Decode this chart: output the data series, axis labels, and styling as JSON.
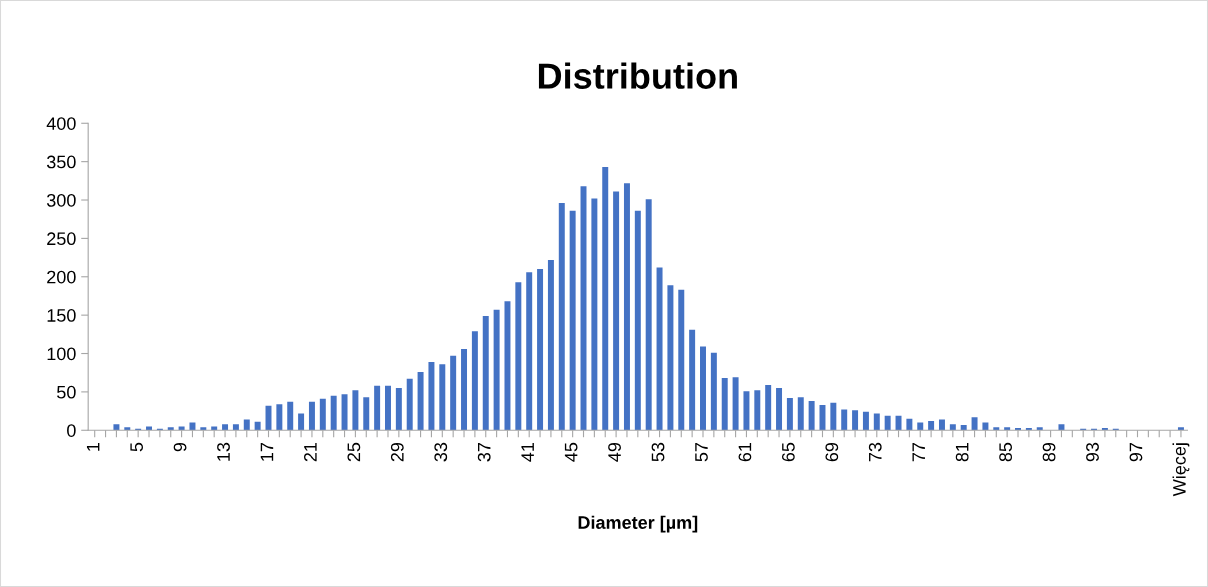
{
  "chart_data": {
    "type": "bar",
    "title": "Distribution",
    "xlabel": "Diameter [µm]",
    "categories": [
      "1",
      null,
      null,
      null,
      "5",
      null,
      null,
      null,
      "9",
      null,
      null,
      null,
      "13",
      null,
      null,
      null,
      "17",
      null,
      null,
      null,
      "21",
      null,
      null,
      null,
      "25",
      null,
      null,
      null,
      "29",
      null,
      null,
      null,
      "33",
      null,
      null,
      null,
      "37",
      null,
      null,
      null,
      "41",
      null,
      null,
      null,
      "45",
      null,
      null,
      null,
      "49",
      null,
      null,
      null,
      "53",
      null,
      null,
      null,
      "57",
      null,
      null,
      null,
      "61",
      null,
      null,
      null,
      "65",
      null,
      null,
      null,
      "69",
      null,
      null,
      null,
      "73",
      null,
      null,
      null,
      "77",
      null,
      null,
      null,
      "81",
      null,
      null,
      null,
      "85",
      null,
      null,
      null,
      "89",
      null,
      null,
      null,
      "93",
      null,
      null,
      null,
      "97",
      null,
      null,
      null,
      "Więcej"
    ],
    "values": [
      0,
      0,
      8,
      4,
      2,
      5,
      2,
      4,
      5,
      10,
      4,
      5,
      8,
      8,
      14,
      11,
      32,
      34,
      37,
      22,
      37,
      41,
      45,
      47,
      52,
      43,
      58,
      58,
      55,
      67,
      76,
      89,
      86,
      97,
      106,
      129,
      149,
      157,
      168,
      193,
      206,
      210,
      222,
      296,
      286,
      318,
      302,
      343,
      311,
      322,
      286,
      301,
      212,
      189,
      183,
      131,
      109,
      101,
      68,
      69,
      51,
      52,
      59,
      55,
      42,
      43,
      38,
      33,
      36,
      27,
      26,
      24,
      22,
      19,
      19,
      15,
      10,
      12,
      14,
      8,
      7,
      17,
      10,
      4,
      4,
      3,
      3,
      4,
      null,
      8,
      0,
      2,
      2,
      3,
      2,
      0,
      0,
      0,
      null,
      0,
      4
    ],
    "color": "#4472c4",
    "ylim": [
      0,
      400
    ],
    "yticks": [
      0,
      50,
      100,
      150,
      200,
      250,
      300,
      350,
      400
    ],
    "grid": false,
    "legend": false
  }
}
